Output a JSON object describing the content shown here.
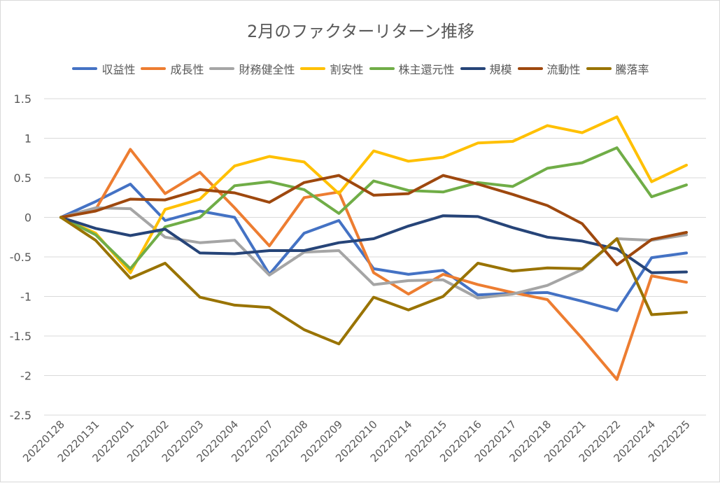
{
  "chart_data": {
    "type": "line",
    "title": "2月のファクターリターン推移",
    "xlabel": "",
    "ylabel": "",
    "ylim": [
      -2.5,
      1.5
    ],
    "yticks": [
      1.5,
      1,
      0.5,
      0,
      -0.5,
      -1,
      -1.5,
      -2,
      -2.5
    ],
    "ytick_labels": [
      "1.5",
      "1",
      "0.5",
      "0",
      "-0.5",
      "-1",
      "-1.5",
      "-2",
      "-2.5"
    ],
    "grid": true,
    "legend_position": "top",
    "categories": [
      "20220128",
      "20220131",
      "20220201",
      "20220202",
      "20220203",
      "20220204",
      "20220207",
      "20220208",
      "20220209",
      "20220210",
      "20220214",
      "20220215",
      "20220216",
      "20220217",
      "20220218",
      "20220221",
      "20220222",
      "20220224",
      "20220225"
    ],
    "series": [
      {
        "name": "収益性",
        "color": "#4472C4",
        "values": [
          0,
          0.2,
          0.42,
          -0.04,
          0.08,
          0.0,
          -0.72,
          -0.2,
          -0.04,
          -0.65,
          -0.72,
          -0.67,
          -0.98,
          -0.96,
          -0.95,
          -1.06,
          -1.18,
          -0.51,
          -0.45
        ]
      },
      {
        "name": "成長性",
        "color": "#ED7D31",
        "values": [
          0,
          0.1,
          0.86,
          0.3,
          0.57,
          0.12,
          -0.36,
          0.25,
          0.32,
          -0.7,
          -0.97,
          -0.72,
          -0.85,
          -0.95,
          -1.04,
          -1.53,
          -2.05,
          -0.74,
          -0.82
        ]
      },
      {
        "name": "財務健全性",
        "color": "#A5A5A5",
        "values": [
          0,
          0.12,
          0.11,
          -0.25,
          -0.32,
          -0.29,
          -0.73,
          -0.44,
          -0.42,
          -0.85,
          -0.8,
          -0.79,
          -1.02,
          -0.97,
          -0.86,
          -0.66,
          -0.27,
          -0.29,
          -0.22
        ]
      },
      {
        "name": "割安性",
        "color": "#FFC000",
        "values": [
          0,
          -0.2,
          -0.7,
          0.1,
          0.23,
          0.65,
          0.77,
          0.7,
          0.3,
          0.84,
          0.71,
          0.76,
          0.94,
          0.96,
          1.16,
          1.07,
          1.27,
          0.45,
          0.66
        ]
      },
      {
        "name": "株主還元性",
        "color": "#70AD47",
        "values": [
          0,
          -0.22,
          -0.65,
          -0.12,
          0.0,
          0.4,
          0.45,
          0.35,
          0.05,
          0.46,
          0.34,
          0.32,
          0.44,
          0.39,
          0.62,
          0.69,
          0.88,
          0.26,
          0.41
        ]
      },
      {
        "name": "規模",
        "color": "#264478",
        "values": [
          0,
          -0.14,
          -0.23,
          -0.15,
          -0.45,
          -0.46,
          -0.42,
          -0.42,
          -0.32,
          -0.27,
          -0.11,
          0.02,
          0.01,
          -0.13,
          -0.25,
          -0.3,
          -0.4,
          -0.7,
          -0.69
        ]
      },
      {
        "name": "流動性",
        "color": "#9E480E",
        "values": [
          0,
          0.08,
          0.23,
          0.22,
          0.35,
          0.31,
          0.19,
          0.44,
          0.53,
          0.28,
          0.3,
          0.53,
          0.42,
          0.29,
          0.15,
          -0.08,
          -0.6,
          -0.28,
          -0.19
        ]
      },
      {
        "name": "騰落率",
        "color": "#997300",
        "values": [
          0,
          -0.29,
          -0.77,
          -0.58,
          -1.01,
          -1.11,
          -1.14,
          -1.42,
          -1.6,
          -1.01,
          -1.17,
          -1.0,
          -0.58,
          -0.68,
          -0.64,
          -0.65,
          -0.27,
          -1.23,
          -1.2
        ]
      }
    ]
  }
}
